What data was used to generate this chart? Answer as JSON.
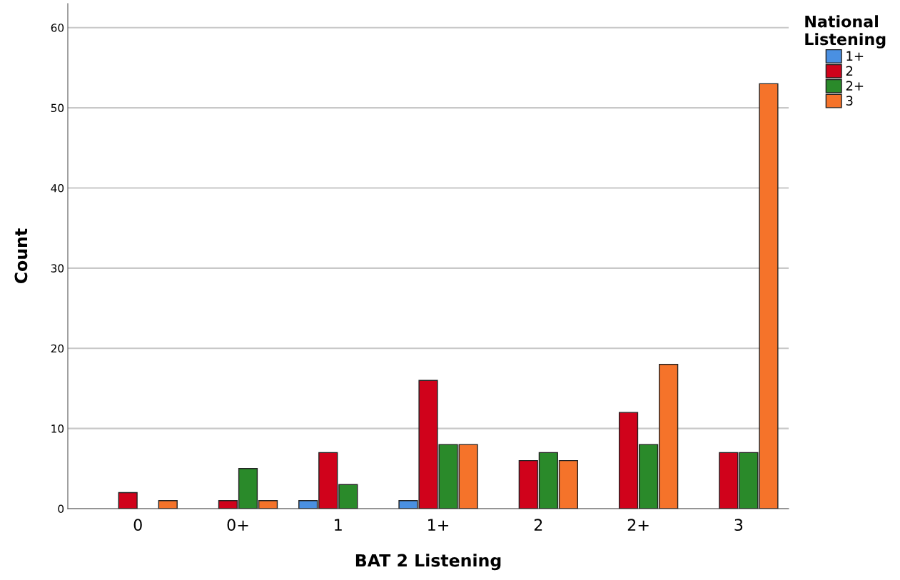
{
  "chart_data": {
    "type": "bar",
    "xlabel": "BAT 2 Listening",
    "ylabel": "Count",
    "legend_title": "National\nListening",
    "categories": [
      "0",
      "0+",
      "1",
      "1+",
      "2",
      "2+",
      "3"
    ],
    "series": [
      {
        "name": "1+",
        "color": "#4a90e2",
        "values": [
          null,
          null,
          1,
          1,
          null,
          null,
          null
        ]
      },
      {
        "name": "2",
        "color": "#d0021b",
        "values": [
          2,
          1,
          7,
          16,
          6,
          12,
          7
        ]
      },
      {
        "name": "2+",
        "color": "#2a8a2a",
        "values": [
          null,
          5,
          3,
          8,
          7,
          8,
          7
        ]
      },
      {
        "name": "3",
        "color": "#f5732a",
        "values": [
          1,
          1,
          null,
          8,
          6,
          18,
          53
        ]
      }
    ],
    "ylim": [
      0,
      63
    ],
    "yticks": [
      0,
      10,
      20,
      30,
      40,
      50,
      60
    ],
    "grid": "y",
    "legend": "top right"
  }
}
